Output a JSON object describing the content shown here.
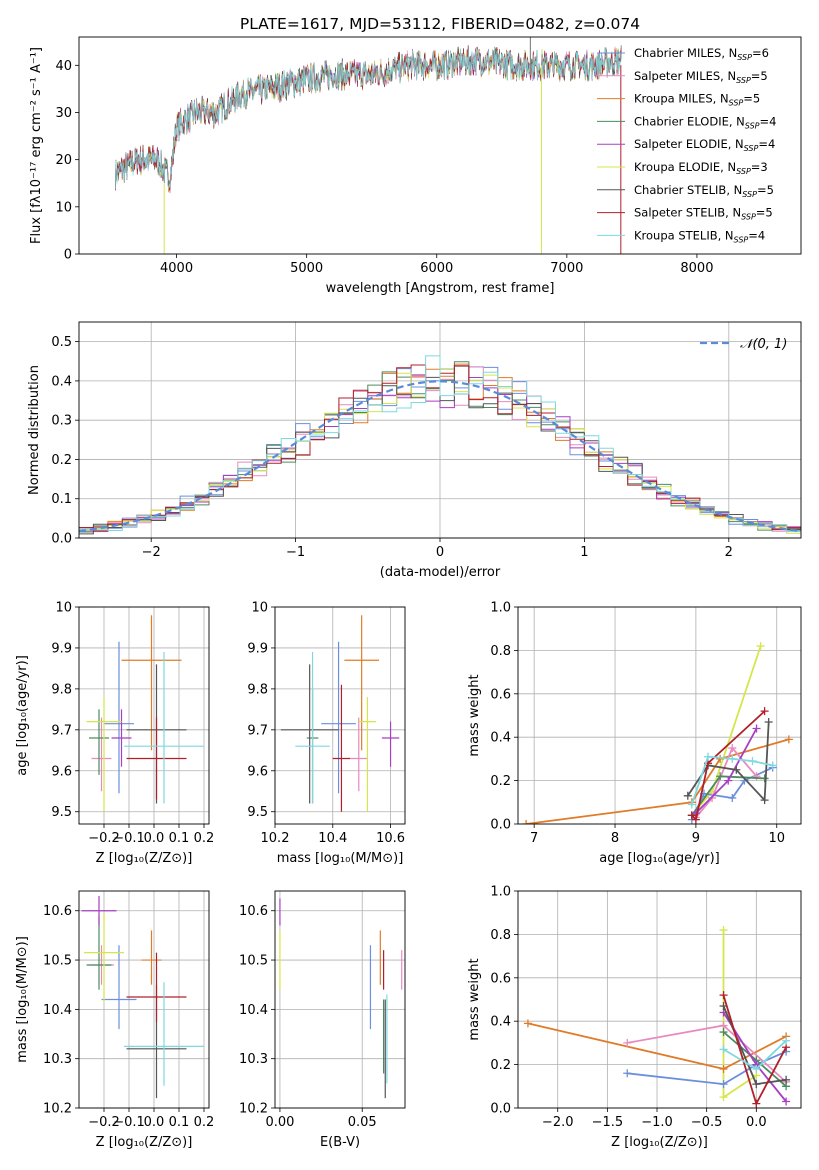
{
  "figure": {
    "title": "PLATE=1617, MJD=53112, FIBERID=0482, z=0.074"
  },
  "colors": {
    "Chabrier MILES": "#6a8fdc",
    "Salpeter MILES": "#e88ac0",
    "Kroupa MILES": "#e07b28",
    "Chabrier ELODIE": "#4d8a62",
    "Salpeter ELODIE": "#a63fc2",
    "Kroupa ELODIE": "#d6e64a",
    "Chabrier STELIB": "#555555",
    "Salpeter STELIB": "#b0202a",
    "Kroupa STELIB": "#7fd8e0"
  },
  "chart_data": [
    {
      "id": "spectrum",
      "type": "line",
      "title": "PLATE=1617, MJD=53112, FIBERID=0482, z=0.074",
      "xlabel": "wavelength [Angstrom, rest frame]",
      "ylabel": "Flux [fλ10⁻¹⁷ erg cm⁻² s⁻¹ A⁻¹]",
      "xlim": [
        3250,
        8800
      ],
      "ylim": [
        0,
        46
      ],
      "xticks": [
        4000,
        5000,
        6000,
        7000,
        8000
      ],
      "yticks": [
        0,
        10,
        20,
        30,
        40
      ],
      "grid": false,
      "legend_position": "top-right",
      "legend": [
        "Chabrier MILES, N_SSP=6",
        "Salpeter MILES, N_SSP=5",
        "Kroupa MILES, N_SSP=5",
        "Chabrier ELODIE, N_SSP=4",
        "Salpeter ELODIE, N_SSP=4",
        "Kroupa ELODIE, N_SSP=3",
        "Chabrier STELIB, N_SSP=5",
        "Salpeter STELIB, N_SSP=5",
        "Kroupa STELIB, N_SSP=4"
      ],
      "legend_labels": [
        {
          "model": "Chabrier MILES",
          "n": "6"
        },
        {
          "model": "Salpeter MILES",
          "n": "5"
        },
        {
          "model": "Kroupa MILES",
          "n": "5"
        },
        {
          "model": "Chabrier ELODIE",
          "n": "4"
        },
        {
          "model": "Salpeter ELODIE",
          "n": "4"
        },
        {
          "model": "Kroupa ELODIE",
          "n": "3"
        },
        {
          "model": "Chabrier STELIB",
          "n": "5"
        },
        {
          "model": "Salpeter STELIB",
          "n": "5"
        },
        {
          "model": "Kroupa STELIB",
          "n": "4"
        }
      ],
      "continuum": {
        "x": [
          3530,
          3700,
          3850,
          3950,
          4000,
          4150,
          4300,
          4500,
          4700,
          5000,
          5200,
          5500,
          5800,
          6000,
          6300,
          6600,
          6800,
          7000,
          7200,
          7400
        ],
        "y": [
          17,
          20,
          20,
          16,
          27,
          30,
          30,
          34,
          35,
          37,
          38,
          38,
          40,
          40,
          41,
          40,
          40,
          40,
          40,
          41
        ]
      }
    },
    {
      "id": "residuals",
      "type": "histogram",
      "xlabel": "(data-model)/error",
      "ylabel": "Normed distribution",
      "xlim": [
        -2.5,
        2.5
      ],
      "ylim": [
        0,
        0.55
      ],
      "xticks": [
        -2,
        -1,
        0,
        1,
        2
      ],
      "yticks": [
        0.0,
        0.1,
        0.2,
        0.3,
        0.4,
        0.5
      ],
      "grid": true,
      "legend_position": "top-right",
      "reference_curve": "𝒩(0, 1)"
    },
    {
      "id": "age-vs-Z",
      "type": "scatter",
      "xlabel": "Z [log₁₀(Z/Z⊙)]",
      "ylabel": "age  [log₁₀(age/yr)]",
      "xlim": [
        -0.3,
        0.22
      ],
      "ylim": [
        9.47,
        10.0
      ],
      "xticks": [
        -0.2,
        -0.1,
        0.0,
        0.1,
        0.2
      ],
      "yticks": [
        9.5,
        9.6,
        9.7,
        9.8,
        9.9,
        10.0
      ],
      "grid": true,
      "points": [
        {
          "model": "Chabrier MILES",
          "x": -0.14,
          "xerr": 0.06,
          "y": 9.715,
          "yerr": [
            0.17,
            0.2
          ]
        },
        {
          "model": "Salpeter MILES",
          "x": -0.21,
          "xerr": 0.04,
          "y": 9.63,
          "yerr": [
            0.08,
            0.1
          ]
        },
        {
          "model": "Kroupa MILES",
          "x": -0.01,
          "xerr": 0.12,
          "y": 9.87,
          "yerr": [
            0.22,
            0.11
          ]
        },
        {
          "model": "Chabrier ELODIE",
          "x": -0.22,
          "xerr": 0.04,
          "y": 9.68,
          "yerr": [
            0.09,
            0.07
          ]
        },
        {
          "model": "Salpeter ELODIE",
          "x": -0.13,
          "xerr": 0.04,
          "y": 9.68,
          "yerr": [
            0.07,
            0.07
          ]
        },
        {
          "model": "Kroupa ELODIE",
          "x": -0.2,
          "xerr": 0.07,
          "y": 9.72,
          "yerr": [
            0.22,
            0.06
          ]
        },
        {
          "model": "Chabrier STELIB",
          "x": 0.01,
          "xerr": 0.12,
          "y": 9.7,
          "yerr": [
            0.18,
            0.16
          ]
        },
        {
          "model": "Salpeter STELIB",
          "x": 0.01,
          "xerr": 0.12,
          "y": 9.63,
          "yerr": [
            0.1,
            0.1
          ]
        },
        {
          "model": "Kroupa STELIB",
          "x": 0.04,
          "xerr": 0.16,
          "y": 9.66,
          "yerr": [
            0.14,
            0.23
          ]
        }
      ]
    },
    {
      "id": "age-vs-mass",
      "type": "scatter",
      "xlabel": "mass [log₁₀(M/M⊙)]",
      "ylabel": "",
      "xlim": [
        10.2,
        10.65
      ],
      "ylim": [
        9.47,
        10.0
      ],
      "xticks": [
        10.2,
        10.4,
        10.6
      ],
      "yticks": [
        9.5,
        9.6,
        9.7,
        9.8,
        9.9,
        10.0
      ],
      "grid": true,
      "points": [
        {
          "model": "Chabrier MILES",
          "x": 10.42,
          "xerr": 0.06,
          "y": 9.715,
          "yerr": [
            0.17,
            0.2
          ]
        },
        {
          "model": "Salpeter MILES",
          "x": 10.49,
          "xerr": 0.03,
          "y": 9.63,
          "yerr": [
            0.08,
            0.1
          ]
        },
        {
          "model": "Kroupa MILES",
          "x": 10.5,
          "xerr": 0.06,
          "y": 9.87,
          "yerr": [
            0.22,
            0.11
          ]
        },
        {
          "model": "Chabrier ELODIE",
          "x": 10.33,
          "xerr": 0.02,
          "y": 9.68,
          "yerr": [
            0.16,
            0.12
          ]
        },
        {
          "model": "Salpeter ELODIE",
          "x": 10.6,
          "xerr": 0.03,
          "y": 9.68,
          "yerr": [
            0.07,
            0.04
          ]
        },
        {
          "model": "Kroupa ELODIE",
          "x": 10.52,
          "xerr": 0.03,
          "y": 9.72,
          "yerr": [
            0.22,
            0.06
          ]
        },
        {
          "model": "Chabrier STELIB",
          "x": 10.32,
          "xerr": 0.1,
          "y": 9.7,
          "yerr": [
            0.18,
            0.16
          ]
        },
        {
          "model": "Salpeter STELIB",
          "x": 10.43,
          "xerr": 0.03,
          "y": 9.63,
          "yerr": [
            0.13,
            0.18
          ]
        },
        {
          "model": "Kroupa STELIB",
          "x": 10.33,
          "xerr": 0.06,
          "y": 9.66,
          "yerr": [
            0.14,
            0.23
          ]
        }
      ]
    },
    {
      "id": "mass-vs-Z",
      "type": "scatter",
      "xlabel": "Z [log₁₀(Z/Z⊙)]",
      "ylabel": "mass [log₁₀(M/M⊙)]",
      "xlim": [
        -0.3,
        0.22
      ],
      "ylim": [
        10.2,
        10.64
      ],
      "xticks": [
        -0.2,
        -0.1,
        0.0,
        0.1,
        0.2
      ],
      "yticks": [
        10.2,
        10.3,
        10.4,
        10.5,
        10.6
      ],
      "grid": true,
      "points": [
        {
          "model": "Chabrier MILES",
          "x": -0.14,
          "xerr": 0.07,
          "y": 10.42,
          "yerr": [
            0.06,
            0.11
          ]
        },
        {
          "model": "Salpeter MILES",
          "x": -0.21,
          "xerr": 0.05,
          "y": 10.49,
          "yerr": [
            0.04,
            0.04
          ]
        },
        {
          "model": "Kroupa MILES",
          "x": -0.01,
          "xerr": 0.04,
          "y": 10.5,
          "yerr": [
            0.05,
            0.06
          ]
        },
        {
          "model": "Chabrier ELODIE",
          "x": -0.22,
          "xerr": 0.05,
          "y": 10.49,
          "yerr": [
            0.05,
            0.1
          ]
        },
        {
          "model": "Salpeter ELODIE",
          "x": -0.22,
          "xerr": 0.07,
          "y": 10.6,
          "yerr": [
            0.03,
            0.03
          ]
        },
        {
          "model": "Kroupa ELODIE",
          "x": -0.2,
          "xerr": 0.08,
          "y": 10.515,
          "yerr": [
            0.1,
            0.08
          ]
        },
        {
          "model": "Chabrier STELIB",
          "x": 0.01,
          "xerr": 0.12,
          "y": 10.32,
          "yerr": [
            0.1,
            0.13
          ]
        },
        {
          "model": "Salpeter STELIB",
          "x": 0.01,
          "xerr": 0.12,
          "y": 10.425,
          "yerr": [
            0.05,
            0.09
          ]
        },
        {
          "model": "Kroupa STELIB",
          "x": 0.04,
          "xerr": 0.16,
          "y": 10.325,
          "yerr": [
            0.08,
            0.13
          ]
        }
      ]
    },
    {
      "id": "mass-vs-EBV",
      "type": "scatter",
      "xlabel": "E(B-V)",
      "ylabel": "",
      "xlim": [
        -0.003,
        0.076
      ],
      "ylim": [
        10.2,
        10.64
      ],
      "xticks": [
        0.0,
        0.05
      ],
      "yticks": [
        10.2,
        10.3,
        10.4,
        10.5,
        10.6
      ],
      "grid": true,
      "points": [
        {
          "model": "Chabrier MILES",
          "x": 0.055,
          "y": 10.42,
          "yerr": [
            0.06,
            0.11
          ]
        },
        {
          "model": "Salpeter MILES",
          "x": 0.074,
          "y": 10.48,
          "yerr": [
            0.04,
            0.04
          ]
        },
        {
          "model": "Kroupa MILES",
          "x": 0.061,
          "y": 10.5,
          "yerr": [
            0.05,
            0.06
          ]
        },
        {
          "model": "Chabrier ELODIE",
          "x": 0.063,
          "y": 10.34,
          "yerr": [
            0.07,
            0.08
          ]
        },
        {
          "model": "Salpeter ELODIE",
          "x": 0.0,
          "y": 10.6,
          "yerr": [
            0.03,
            0.025
          ]
        },
        {
          "model": "Kroupa ELODIE",
          "x": 0.0,
          "y": 10.5,
          "yerr": [
            0.06,
            0.06
          ]
        },
        {
          "model": "Chabrier STELIB",
          "x": 0.064,
          "y": 10.32,
          "yerr": [
            0.1,
            0.1
          ]
        },
        {
          "model": "Salpeter STELIB",
          "x": 0.063,
          "y": 10.48,
          "yerr": [
            0.04,
            0.04
          ]
        },
        {
          "model": "Kroupa STELIB",
          "x": 0.065,
          "y": 10.33,
          "yerr": [
            0.08,
            0.1
          ]
        }
      ]
    },
    {
      "id": "weight-vs-age",
      "type": "line",
      "xlabel": "age  [log₁₀(age/yr)]",
      "ylabel": "mass weight",
      "xlim": [
        6.8,
        10.3
      ],
      "ylim": [
        0,
        1.0
      ],
      "xticks": [
        7,
        8,
        9,
        10
      ],
      "yticks": [
        0.0,
        0.2,
        0.4,
        0.6,
        0.8,
        1.0
      ],
      "grid": true,
      "series": [
        {
          "model": "Kroupa ELODIE",
          "x": [
            8.95,
            9.2,
            9.8
          ],
          "y": [
            0.04,
            0.15,
            0.82
          ]
        },
        {
          "model": "Kroupa MILES",
          "x": [
            6.9,
            8.95,
            9.3,
            10.15
          ],
          "y": [
            0.0,
            0.1,
            0.3,
            0.39
          ]
        },
        {
          "model": "Chabrier MILES",
          "x": [
            8.95,
            9.1,
            9.45,
            9.6,
            9.95
          ],
          "y": [
            0.02,
            0.14,
            0.12,
            0.2,
            0.26
          ]
        },
        {
          "model": "Salpeter MILES",
          "x": [
            9.0,
            9.2,
            9.45,
            9.75
          ],
          "y": [
            0.03,
            0.12,
            0.35,
            0.22
          ]
        },
        {
          "model": "Chabrier ELODIE",
          "x": [
            8.95,
            9.3,
            9.85
          ],
          "y": [
            0.04,
            0.22,
            0.21
          ]
        },
        {
          "model": "Salpeter ELODIE",
          "x": [
            9.0,
            9.4,
            9.75
          ],
          "y": [
            0.05,
            0.2,
            0.44
          ]
        },
        {
          "model": "Chabrier STELIB",
          "x": [
            8.9,
            9.15,
            9.5,
            9.85,
            9.9
          ],
          "y": [
            0.13,
            0.27,
            0.25,
            0.11,
            0.47
          ]
        },
        {
          "model": "Salpeter STELIB",
          "x": [
            8.95,
            9.0,
            9.15,
            9.85
          ],
          "y": [
            0.04,
            0.02,
            0.28,
            0.52
          ]
        },
        {
          "model": "Kroupa STELIB",
          "x": [
            8.95,
            9.15,
            9.45,
            9.7,
            9.95
          ],
          "y": [
            0.09,
            0.31,
            0.3,
            0.29,
            0.27
          ]
        }
      ]
    },
    {
      "id": "weight-vs-Z",
      "type": "line",
      "xlabel": "Z [log₁₀(Z/Z⊙)]",
      "ylabel": "mass weight",
      "xlim": [
        -2.4,
        0.45
      ],
      "ylim": [
        0,
        1.0
      ],
      "xticks": [
        -2.0,
        -1.5,
        -1.0,
        -0.5,
        0.0
      ],
      "yticks": [
        0.0,
        0.2,
        0.4,
        0.6,
        0.8,
        1.0
      ],
      "grid": true,
      "series": [
        {
          "model": "Kroupa ELODIE",
          "x": [
            -0.33,
            -0.33,
            0.0
          ],
          "y": [
            0.82,
            0.05,
            0.15
          ]
        },
        {
          "model": "Kroupa MILES",
          "x": [
            -2.3,
            -0.33,
            0.3
          ],
          "y": [
            0.39,
            0.18,
            0.33
          ]
        },
        {
          "model": "Chabrier MILES",
          "x": [
            -1.3,
            -0.33,
            0.0,
            0.3
          ],
          "y": [
            0.16,
            0.11,
            0.2,
            0.26
          ]
        },
        {
          "model": "Salpeter MILES",
          "x": [
            -1.3,
            -0.33,
            0.3
          ],
          "y": [
            0.3,
            0.38,
            0.12
          ]
        },
        {
          "model": "Chabrier ELODIE",
          "x": [
            -0.33,
            0.0,
            0.3
          ],
          "y": [
            0.35,
            0.22,
            0.1
          ]
        },
        {
          "model": "Salpeter ELODIE",
          "x": [
            -0.33,
            0.0,
            0.3
          ],
          "y": [
            0.44,
            0.2,
            0.03
          ]
        },
        {
          "model": "Chabrier STELIB",
          "x": [
            -0.33,
            0.0,
            0.3
          ],
          "y": [
            0.47,
            0.11,
            0.13
          ]
        },
        {
          "model": "Salpeter STELIB",
          "x": [
            -0.33,
            0.0,
            0.3
          ],
          "y": [
            0.52,
            0.02,
            0.28
          ]
        },
        {
          "model": "Kroupa STELIB",
          "x": [
            -0.33,
            0.0,
            0.3
          ],
          "y": [
            0.27,
            0.18,
            0.31
          ]
        }
      ]
    }
  ]
}
